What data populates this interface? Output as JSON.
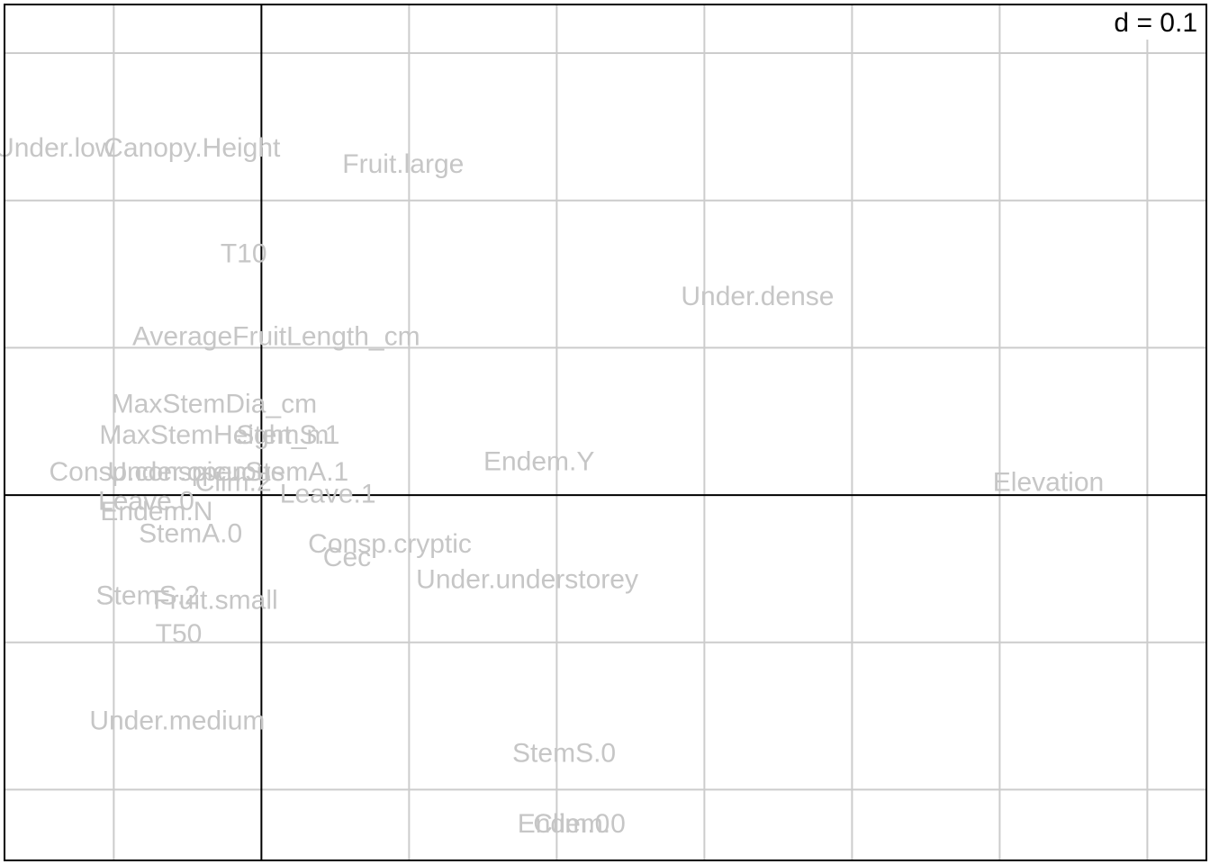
{
  "chart_data": {
    "type": "scatter",
    "scale_label": "d = 0.1",
    "grid_step": 0.1,
    "xlim": [
      -0.174,
      0.64
    ],
    "ylim": [
      -0.248,
      0.333
    ],
    "grid": true,
    "points": [
      {
        "label": "Under.low",
        "x": -0.14,
        "y": 0.236
      },
      {
        "label": "Canopy.Height",
        "x": -0.047,
        "y": 0.236
      },
      {
        "label": "Fruit.large",
        "x": 0.096,
        "y": 0.225
      },
      {
        "label": "T10",
        "x": -0.012,
        "y": 0.164
      },
      {
        "label": "Under.dense",
        "x": 0.336,
        "y": 0.135
      },
      {
        "label": "AverageFruitLength_cm",
        "x": 0.01,
        "y": 0.108
      },
      {
        "label": "MaxStemDia_cm",
        "x": -0.032,
        "y": 0.062
      },
      {
        "label": "MaxStemHeight_m",
        "x": -0.032,
        "y": 0.041
      },
      {
        "label": "StemS.1",
        "x": 0.018,
        "y": 0.041
      },
      {
        "label": "Endem.Y",
        "x": 0.188,
        "y": 0.023
      },
      {
        "label": "Elevation",
        "x": 0.533,
        "y": 0.009
      },
      {
        "label": "Consp.conspicuous",
        "x": -0.064,
        "y": 0.016
      },
      {
        "label": "Under.open",
        "x": -0.057,
        "y": 0.016
      },
      {
        "label": "StemA.1",
        "x": 0.024,
        "y": 0.016
      },
      {
        "label": "Clim.2",
        "x": -0.019,
        "y": 0.009
      },
      {
        "label": "Leave.1",
        "x": 0.045,
        "y": 0.001
      },
      {
        "label": "Leave.0",
        "x": -0.078,
        "y": -0.004
      },
      {
        "label": "Endem.N",
        "x": -0.071,
        "y": -0.011
      },
      {
        "label": "StemA.0",
        "x": -0.048,
        "y": -0.026
      },
      {
        "label": "Consp.cryptic",
        "x": 0.087,
        "y": -0.033
      },
      {
        "label": "Cec",
        "x": 0.058,
        "y": -0.042
      },
      {
        "label": "Under.understorey",
        "x": 0.18,
        "y": -0.057
      },
      {
        "label": "StemS.2",
        "x": -0.077,
        "y": -0.068
      },
      {
        "label": "Fruit.small",
        "x": -0.031,
        "y": -0.071
      },
      {
        "label": "T50",
        "x": -0.056,
        "y": -0.094
      },
      {
        "label": "Under.medium",
        "x": -0.057,
        "y": -0.153
      },
      {
        "label": "StemS.0",
        "x": 0.205,
        "y": -0.175
      },
      {
        "label": "Clim.0",
        "x": 0.21,
        "y": -0.223
      },
      {
        "label": "Endem.0",
        "x": 0.21,
        "y": -0.223
      }
    ]
  }
}
